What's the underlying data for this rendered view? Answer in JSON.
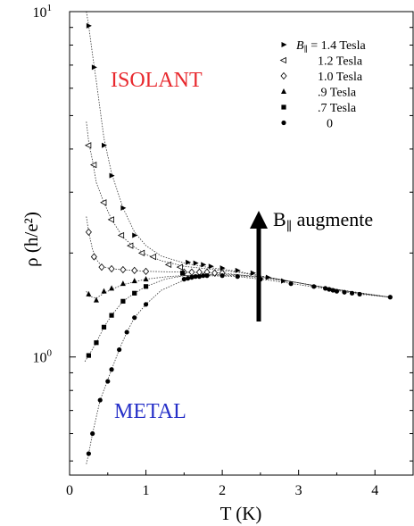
{
  "chart_data": {
    "type": "scatter",
    "title": "",
    "xlabel": "T (K)",
    "ylabel": "ρ (h/e²)",
    "xlim": [
      0,
      4.5
    ],
    "ylim": [
      0.455,
      10
    ],
    "yscale": "log",
    "x_ticks": [
      0,
      1,
      2,
      3,
      4
    ],
    "y_ticks": [
      {
        "value": 1,
        "base": "10",
        "exp": "0"
      },
      {
        "value": 10,
        "base": "10",
        "exp": "1"
      }
    ],
    "grid": false,
    "legend": {
      "position": "top-right",
      "prefix": "B",
      "subscript": "∥",
      "first_suffix": " = 1.4 Tesla"
    },
    "annotations": {
      "isolant": {
        "text": "ISOLANT",
        "color": "#e8292e"
      },
      "metal": {
        "text": "METAL",
        "color": "#2630c8"
      },
      "arrow": {
        "prefix": "B",
        "subscript": "∥",
        "suffix": " augmente"
      }
    },
    "series": [
      {
        "name": "1.4 Tesla",
        "legend_label": "1.4 Tesla",
        "marker": "tri-right",
        "x": [
          0.25,
          0.32,
          0.45,
          0.55,
          0.7,
          0.85,
          1.55,
          1.65,
          1.75,
          1.85,
          2.0,
          2.2,
          2.4,
          2.6,
          2.8
        ],
        "y": [
          9.1,
          6.9,
          4.1,
          3.35,
          2.7,
          2.25,
          1.88,
          1.87,
          1.85,
          1.83,
          1.81,
          1.78,
          1.75,
          1.7,
          1.66
        ]
      },
      {
        "name": "1.2 Tesla",
        "legend_label": "1.2 Tesla",
        "marker": "tri-left",
        "x": [
          0.25,
          0.32,
          0.45,
          0.55,
          0.68,
          0.8,
          0.95,
          1.1,
          1.3,
          1.45
        ],
        "y": [
          4.1,
          3.6,
          2.8,
          2.5,
          2.25,
          2.1,
          2.0,
          1.95,
          1.85,
          1.82
        ]
      },
      {
        "name": "1.0 Tesla",
        "legend_label": "1.0 Tesla",
        "marker": "diamond",
        "x": [
          0.25,
          0.32,
          0.42,
          0.55,
          0.7,
          0.85,
          1.0,
          1.5,
          1.6,
          1.7,
          1.8,
          1.9,
          2.0
        ],
        "y": [
          2.3,
          1.95,
          1.82,
          1.8,
          1.79,
          1.78,
          1.77,
          1.76,
          1.76,
          1.76,
          1.76,
          1.75,
          1.75
        ]
      },
      {
        "name": ".9 Tesla",
        "legend_label": ".9 Tesla",
        "marker": "triangle",
        "x": [
          0.25,
          0.35,
          0.45,
          0.55,
          0.7,
          0.85,
          1.0
        ],
        "y": [
          1.52,
          1.46,
          1.55,
          1.58,
          1.63,
          1.66,
          1.68
        ]
      },
      {
        "name": ".7 Tesla",
        "legend_label": ".7 Tesla",
        "marker": "square",
        "x": [
          0.25,
          0.35,
          0.45,
          0.55,
          0.7,
          0.85,
          1.0,
          1.48
        ],
        "y": [
          1.01,
          1.1,
          1.22,
          1.32,
          1.45,
          1.53,
          1.6,
          1.75
        ]
      },
      {
        "name": "0",
        "legend_label": "0",
        "marker": "circle",
        "x": [
          0.25,
          0.3,
          0.4,
          0.5,
          0.55,
          0.65,
          0.75,
          0.85,
          1.0,
          1.5,
          1.55,
          1.6,
          1.65,
          1.7,
          1.75,
          1.8,
          2.0,
          2.2,
          2.5,
          2.9,
          3.2,
          3.35,
          3.4,
          3.45,
          3.5,
          3.6,
          3.7,
          3.8,
          4.2
        ],
        "y": [
          0.525,
          0.6,
          0.75,
          0.85,
          0.92,
          1.05,
          1.18,
          1.3,
          1.42,
          1.68,
          1.69,
          1.7,
          1.71,
          1.71,
          1.72,
          1.72,
          1.72,
          1.71,
          1.68,
          1.63,
          1.6,
          1.58,
          1.57,
          1.56,
          1.55,
          1.54,
          1.53,
          1.52,
          1.49
        ]
      }
    ],
    "fit_curves": [
      {
        "x": [
          0.22,
          0.25,
          0.3,
          0.35,
          0.45,
          0.55,
          0.7,
          0.85,
          1.0,
          1.2,
          1.5,
          1.8,
          2.2,
          2.6,
          3.0,
          3.4,
          3.8,
          4.2
        ],
        "y": [
          10,
          9.1,
          7.5,
          6.3,
          4.3,
          3.4,
          2.7,
          2.3,
          2.1,
          1.96,
          1.87,
          1.82,
          1.77,
          1.7,
          1.64,
          1.58,
          1.53,
          1.49
        ]
      },
      {
        "x": [
          0.22,
          0.25,
          0.3,
          0.35,
          0.45,
          0.55,
          0.7,
          0.85,
          1.0,
          1.2,
          1.5,
          1.8,
          2.2,
          2.6,
          3.0,
          3.4,
          3.8,
          4.2
        ],
        "y": [
          4.8,
          4.2,
          3.7,
          3.2,
          2.8,
          2.5,
          2.22,
          2.08,
          1.98,
          1.9,
          1.83,
          1.8,
          1.76,
          1.7,
          1.64,
          1.58,
          1.53,
          1.49
        ]
      },
      {
        "x": [
          0.22,
          0.25,
          0.3,
          0.35,
          0.42,
          0.55,
          0.7,
          1.0,
          1.5,
          2.0,
          2.5,
          3.0,
          3.5,
          4.2
        ],
        "y": [
          2.55,
          2.3,
          2.05,
          1.92,
          1.83,
          1.8,
          1.79,
          1.77,
          1.76,
          1.75,
          1.7,
          1.64,
          1.57,
          1.49
        ]
      },
      {
        "x": [
          0.22,
          0.25,
          0.35,
          0.45,
          0.55,
          0.7,
          0.85,
          1.0,
          1.3,
          1.7,
          2.2,
          2.6,
          3.0,
          3.4,
          3.8,
          4.2
        ],
        "y": [
          1.55,
          1.5,
          1.48,
          1.53,
          1.57,
          1.62,
          1.65,
          1.68,
          1.71,
          1.73,
          1.73,
          1.7,
          1.64,
          1.58,
          1.53,
          1.49
        ]
      },
      {
        "x": [
          0.2,
          0.25,
          0.35,
          0.45,
          0.55,
          0.7,
          0.85,
          1.0,
          1.25,
          1.5,
          1.8,
          2.2,
          2.6,
          3.0,
          3.4,
          3.8,
          4.2
        ],
        "y": [
          0.97,
          1.01,
          1.1,
          1.22,
          1.32,
          1.45,
          1.53,
          1.6,
          1.68,
          1.72,
          1.73,
          1.72,
          1.69,
          1.64,
          1.58,
          1.53,
          1.49
        ]
      },
      {
        "x": [
          0.22,
          0.25,
          0.3,
          0.4,
          0.5,
          0.65,
          0.75,
          0.85,
          1.0,
          1.2,
          1.5,
          1.8,
          2.2,
          2.6,
          3.0,
          3.4,
          3.8,
          4.2
        ],
        "y": [
          0.49,
          0.525,
          0.6,
          0.75,
          0.86,
          1.05,
          1.18,
          1.3,
          1.42,
          1.56,
          1.67,
          1.72,
          1.71,
          1.67,
          1.62,
          1.57,
          1.52,
          1.49
        ]
      }
    ]
  }
}
